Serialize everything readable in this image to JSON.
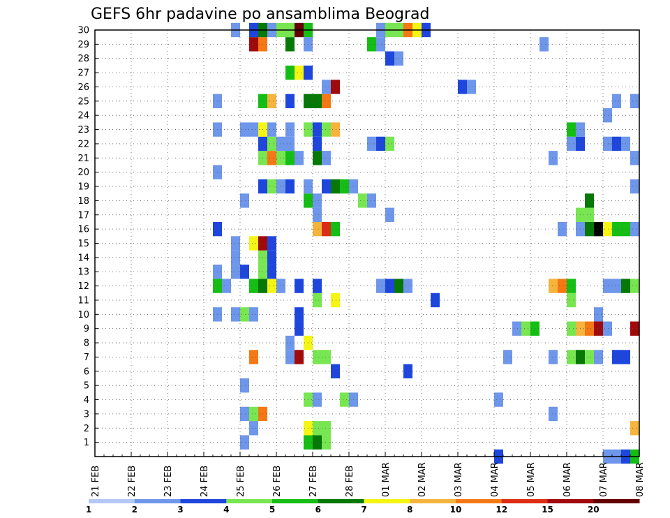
{
  "chart_data": {
    "type": "heatmap",
    "title": "GEFS 6hr padavine po ansamblima Beograd",
    "x_tick_labels": [
      "21 FEB",
      "22 FEB",
      "23 FEB",
      "24 FEB",
      "25 FEB",
      "26 FEB",
      "27 FEB",
      "28 FEB",
      "01 MAR",
      "02 MAR",
      "03 MAR",
      "04 MAR",
      "05 MAR",
      "06 MAR",
      "07 MAR",
      "08 MAR"
    ],
    "y_tick_labels": [
      "1",
      "2",
      "3",
      "4",
      "5",
      "6",
      "7",
      "8",
      "9",
      "10",
      "11",
      "12",
      "13",
      "14",
      "15",
      "16",
      "17",
      "18",
      "19",
      "20",
      "21",
      "22",
      "23",
      "24",
      "25",
      "26",
      "27",
      "28",
      "29",
      "30"
    ],
    "x_unit": "6-hour step from 21 FEB 00Z",
    "x_range": [
      0,
      60
    ],
    "y_range": [
      0,
      30
    ],
    "legend_labels": [
      "1",
      "2",
      "3",
      "4",
      "5",
      "6",
      "7",
      "8",
      "10",
      "12",
      "15",
      "20"
    ],
    "colors": [
      "#b4c8f5",
      "#6e96ea",
      "#1e46dc",
      "#78e650",
      "#14be14",
      "#067806",
      "#f5f514",
      "#f5b43c",
      "#f57814",
      "#dc2d14",
      "#a00a0a",
      "#640000"
    ],
    "cells": [
      [
        1,
        16,
        1
      ],
      [
        1,
        23,
        4
      ],
      [
        1,
        24,
        5
      ],
      [
        1,
        25,
        3
      ],
      [
        2,
        17,
        1
      ],
      [
        2,
        23,
        6
      ],
      [
        2,
        24,
        3
      ],
      [
        2,
        25,
        3
      ],
      [
        2,
        59,
        7
      ],
      [
        3,
        16,
        1
      ],
      [
        3,
        17,
        3
      ],
      [
        3,
        18,
        8
      ],
      [
        3,
        50,
        1
      ],
      [
        4,
        23,
        3
      ],
      [
        4,
        24,
        1
      ],
      [
        4,
        27,
        3
      ],
      [
        4,
        28,
        1
      ],
      [
        4,
        44,
        1
      ],
      [
        5,
        16,
        1
      ],
      [
        6,
        26,
        2
      ],
      [
        6,
        34,
        2
      ],
      [
        7,
        17,
        8
      ],
      [
        7,
        21,
        1
      ],
      [
        7,
        22,
        10
      ],
      [
        7,
        24,
        3
      ],
      [
        7,
        25,
        3
      ],
      [
        7,
        45,
        1
      ],
      [
        7,
        50,
        1
      ],
      [
        7,
        52,
        3
      ],
      [
        7,
        53,
        5
      ],
      [
        7,
        54,
        3
      ],
      [
        7,
        55,
        1
      ],
      [
        7,
        57,
        2
      ],
      [
        7,
        58,
        2
      ],
      [
        8,
        21,
        1
      ],
      [
        8,
        23,
        6
      ],
      [
        9,
        22,
        2
      ],
      [
        9,
        46,
        1
      ],
      [
        9,
        47,
        3
      ],
      [
        9,
        48,
        4
      ],
      [
        9,
        52,
        3
      ],
      [
        9,
        53,
        7
      ],
      [
        9,
        54,
        8
      ],
      [
        9,
        55,
        10
      ],
      [
        9,
        56,
        1
      ],
      [
        9,
        59,
        10
      ],
      [
        10,
        13,
        1
      ],
      [
        10,
        15,
        1
      ],
      [
        10,
        16,
        3
      ],
      [
        10,
        17,
        1
      ],
      [
        10,
        22,
        2
      ],
      [
        10,
        55,
        1
      ],
      [
        11,
        24,
        3
      ],
      [
        11,
        26,
        6
      ],
      [
        11,
        37,
        2
      ],
      [
        11,
        52,
        3
      ],
      [
        12,
        13,
        4
      ],
      [
        12,
        14,
        1
      ],
      [
        12,
        17,
        4
      ],
      [
        12,
        18,
        5
      ],
      [
        12,
        19,
        6
      ],
      [
        12,
        20,
        1
      ],
      [
        12,
        22,
        2
      ],
      [
        12,
        24,
        2
      ],
      [
        12,
        31,
        1
      ],
      [
        12,
        32,
        2
      ],
      [
        12,
        33,
        5
      ],
      [
        12,
        34,
        1
      ],
      [
        12,
        50,
        7
      ],
      [
        12,
        51,
        8
      ],
      [
        12,
        52,
        4
      ],
      [
        12,
        56,
        1
      ],
      [
        12,
        57,
        1
      ],
      [
        12,
        58,
        5
      ],
      [
        12,
        59,
        3
      ],
      [
        13,
        13,
        1
      ],
      [
        13,
        15,
        1
      ],
      [
        13,
        16,
        2
      ],
      [
        13,
        18,
        3
      ],
      [
        13,
        19,
        2
      ],
      [
        14,
        15,
        1
      ],
      [
        14,
        18,
        3
      ],
      [
        14,
        19,
        2
      ],
      [
        15,
        15,
        1
      ],
      [
        15,
        17,
        6
      ],
      [
        15,
        18,
        10
      ],
      [
        15,
        19,
        2
      ],
      [
        16,
        13,
        2
      ],
      [
        16,
        24,
        7
      ],
      [
        16,
        25,
        9
      ],
      [
        16,
        26,
        4
      ],
      [
        16,
        51,
        1
      ],
      [
        16,
        53,
        1
      ],
      [
        16,
        54,
        5
      ],
      [
        16,
        55,
        12
      ],
      [
        16,
        56,
        6
      ],
      [
        16,
        57,
        4
      ],
      [
        16,
        58,
        4
      ],
      [
        16,
        59,
        1
      ],
      [
        17,
        24,
        1
      ],
      [
        17,
        32,
        1
      ],
      [
        17,
        53,
        3
      ],
      [
        17,
        54,
        3
      ],
      [
        18,
        16,
        1
      ],
      [
        18,
        23,
        4
      ],
      [
        18,
        24,
        1
      ],
      [
        18,
        29,
        3
      ],
      [
        18,
        30,
        1
      ],
      [
        18,
        54,
        5
      ],
      [
        19,
        18,
        2
      ],
      [
        19,
        19,
        3
      ],
      [
        19,
        20,
        1
      ],
      [
        19,
        21,
        2
      ],
      [
        19,
        23,
        1
      ],
      [
        19,
        25,
        2
      ],
      [
        19,
        26,
        5
      ],
      [
        19,
        27,
        4
      ],
      [
        19,
        28,
        1
      ],
      [
        19,
        59,
        1
      ],
      [
        20,
        13,
        1
      ],
      [
        21,
        18,
        3
      ],
      [
        21,
        19,
        8
      ],
      [
        21,
        20,
        3
      ],
      [
        21,
        21,
        4
      ],
      [
        21,
        22,
        1
      ],
      [
        21,
        24,
        5
      ],
      [
        21,
        25,
        1
      ],
      [
        21,
        50,
        1
      ],
      [
        21,
        59,
        1
      ],
      [
        22,
        18,
        2
      ],
      [
        22,
        19,
        3
      ],
      [
        22,
        20,
        1
      ],
      [
        22,
        21,
        1
      ],
      [
        22,
        24,
        2
      ],
      [
        22,
        30,
        1
      ],
      [
        22,
        31,
        2
      ],
      [
        22,
        32,
        3
      ],
      [
        22,
        52,
        1
      ],
      [
        22,
        53,
        2
      ],
      [
        22,
        56,
        1
      ],
      [
        22,
        57,
        2
      ],
      [
        22,
        58,
        1
      ],
      [
        23,
        13,
        1
      ],
      [
        23,
        16,
        1
      ],
      [
        23,
        17,
        1
      ],
      [
        23,
        18,
        6
      ],
      [
        23,
        19,
        1
      ],
      [
        23,
        21,
        1
      ],
      [
        23,
        23,
        3
      ],
      [
        23,
        24,
        2
      ],
      [
        23,
        25,
        3
      ],
      [
        23,
        26,
        7
      ],
      [
        23,
        52,
        4
      ],
      [
        23,
        53,
        1
      ],
      [
        24,
        56,
        1
      ],
      [
        25,
        13,
        1
      ],
      [
        25,
        18,
        4
      ],
      [
        25,
        19,
        7
      ],
      [
        25,
        21,
        2
      ],
      [
        25,
        23,
        5
      ],
      [
        25,
        24,
        5
      ],
      [
        25,
        25,
        8
      ],
      [
        25,
        57,
        1
      ],
      [
        25,
        59,
        1
      ],
      [
        26,
        25,
        1
      ],
      [
        26,
        26,
        10
      ],
      [
        26,
        40,
        2
      ],
      [
        26,
        41,
        1
      ],
      [
        27,
        21,
        4
      ],
      [
        27,
        22,
        6
      ],
      [
        27,
        23,
        2
      ],
      [
        28,
        32,
        2
      ],
      [
        28,
        33,
        1
      ],
      [
        29,
        17,
        10
      ],
      [
        29,
        18,
        8
      ],
      [
        29,
        21,
        5
      ],
      [
        29,
        23,
        1
      ],
      [
        29,
        30,
        4
      ],
      [
        29,
        31,
        1
      ],
      [
        29,
        49,
        1
      ],
      [
        30,
        15,
        1
      ],
      [
        30,
        17,
        2
      ],
      [
        30,
        18,
        5
      ],
      [
        30,
        19,
        1
      ],
      [
        30,
        20,
        3
      ],
      [
        30,
        21,
        3
      ],
      [
        30,
        22,
        11
      ],
      [
        30,
        23,
        4
      ],
      [
        30,
        31,
        1
      ],
      [
        30,
        32,
        3
      ],
      [
        30,
        33,
        3
      ],
      [
        30,
        34,
        8
      ],
      [
        30,
        35,
        6
      ],
      [
        30,
        36,
        2
      ],
      [
        0,
        44,
        2
      ],
      [
        0,
        56,
        1
      ],
      [
        0,
        57,
        1
      ],
      [
        0,
        58,
        2
      ],
      [
        0,
        59,
        4
      ]
    ]
  }
}
